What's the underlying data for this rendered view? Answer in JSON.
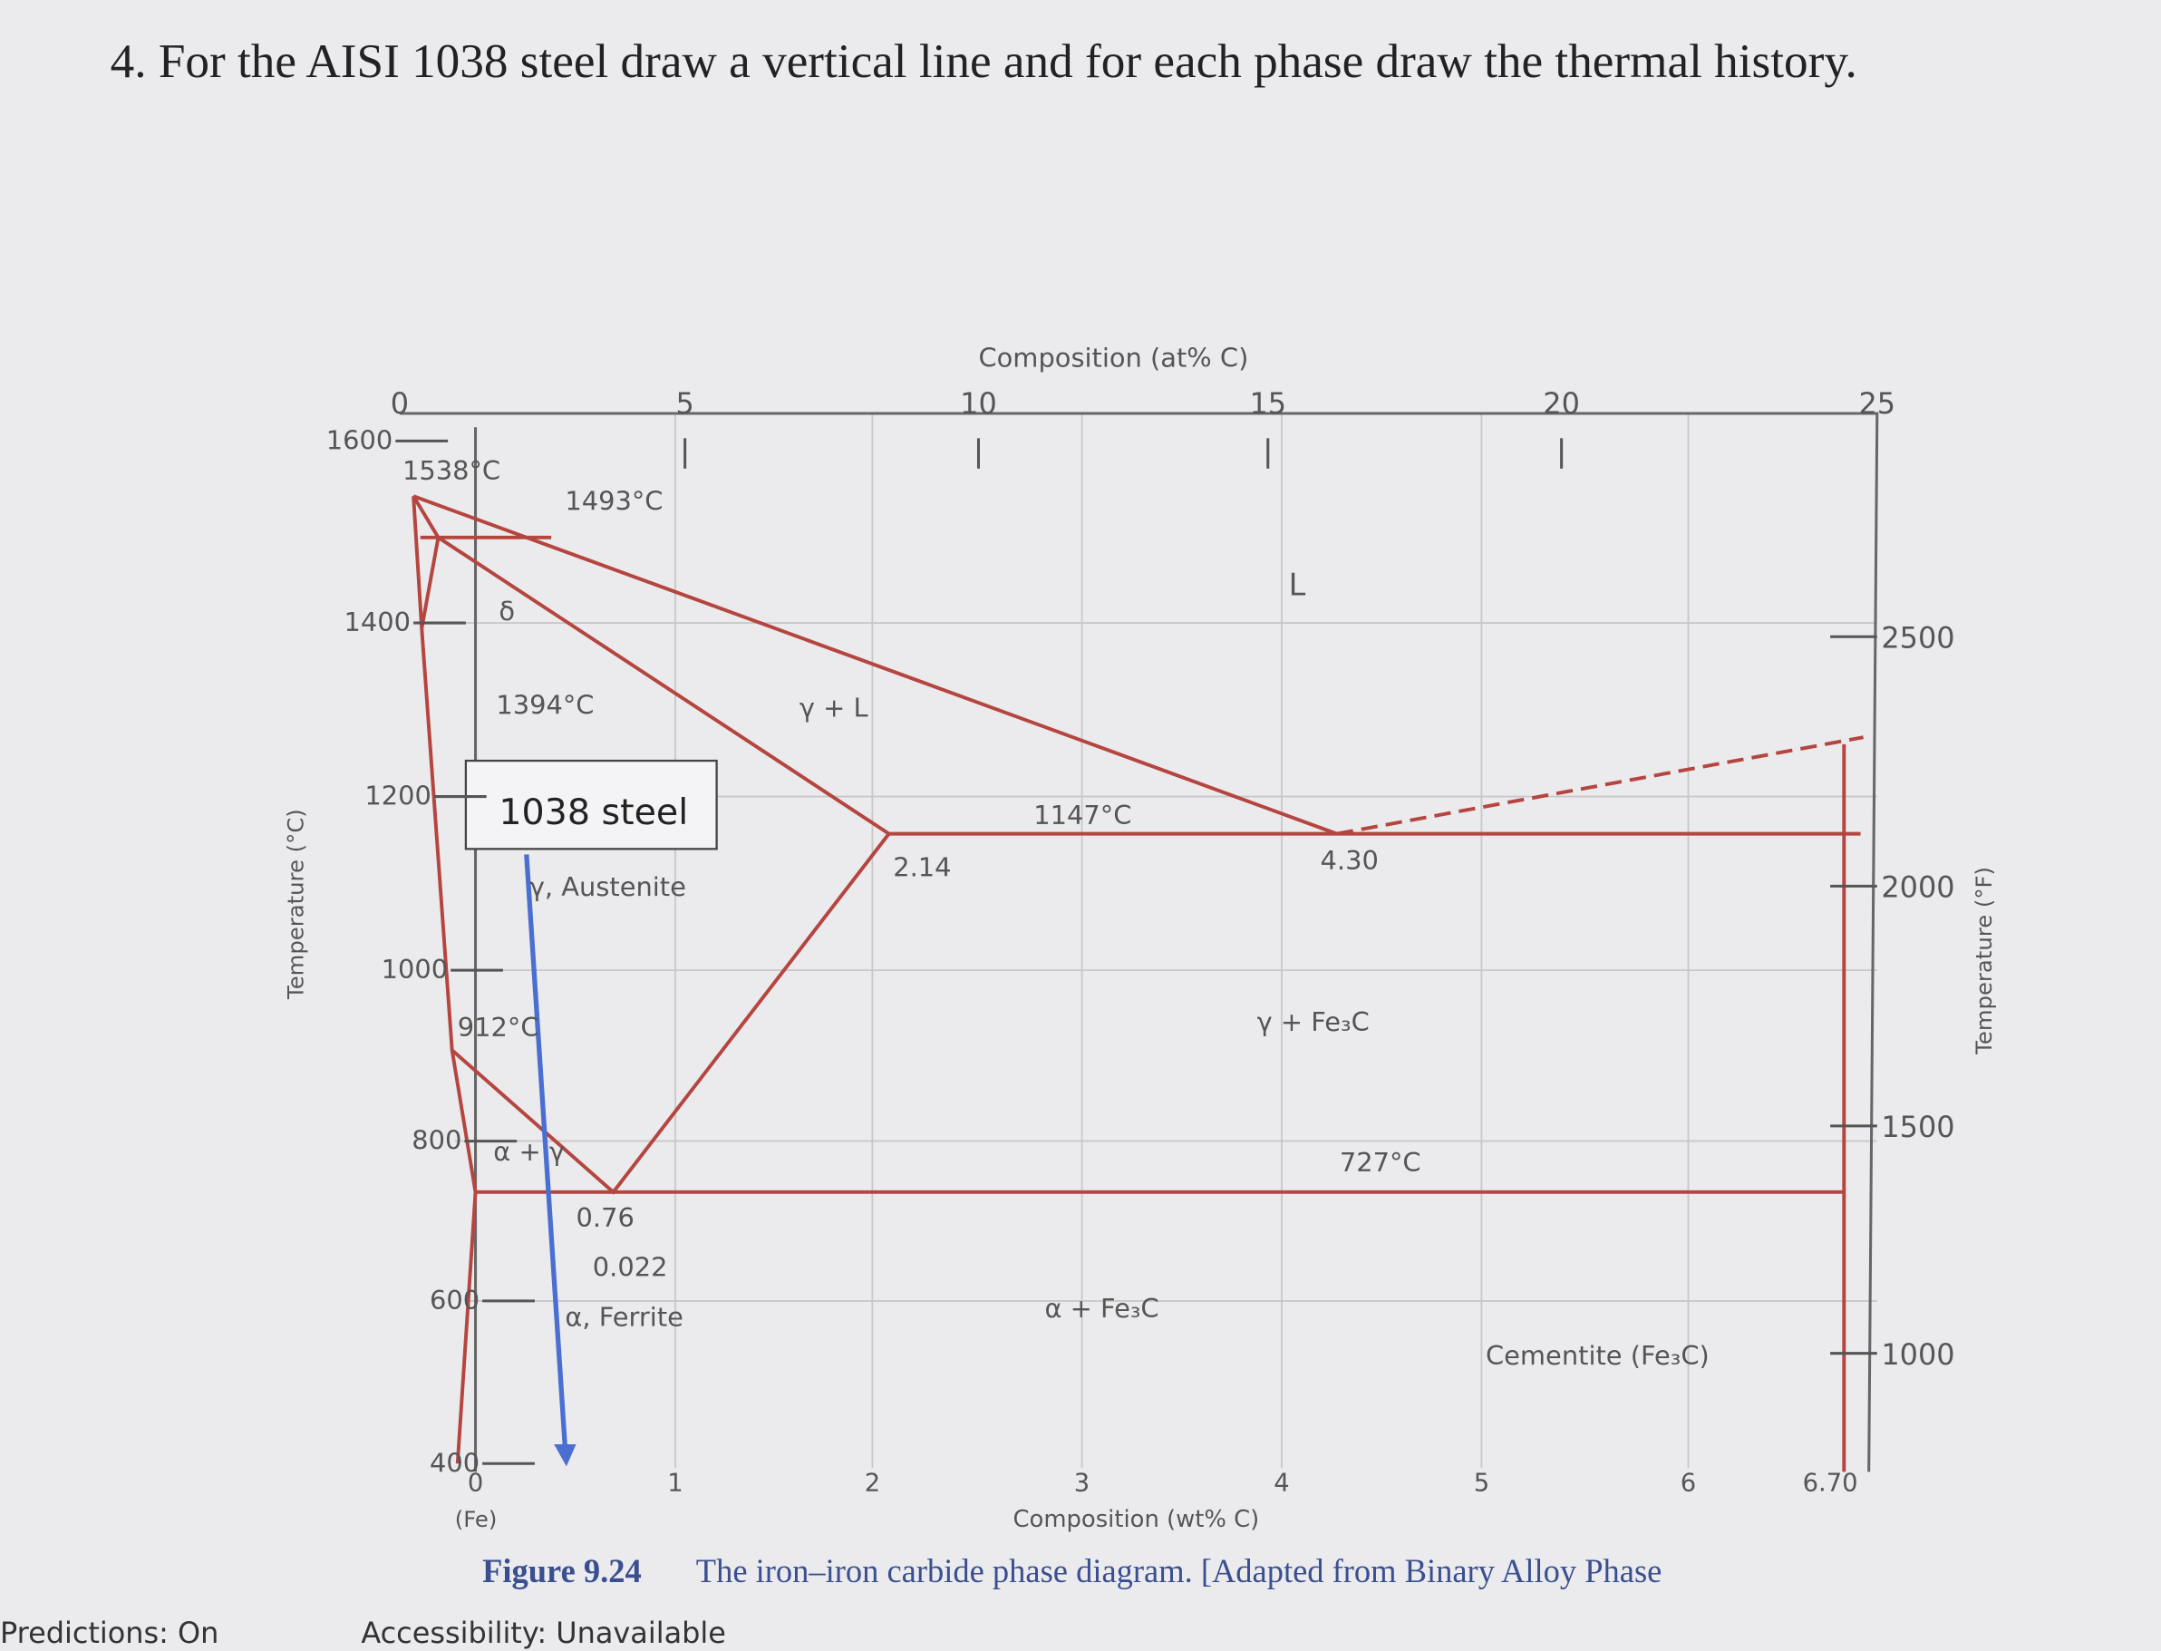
{
  "question": "4. For the AISI 1038 steel draw a vertical line and for each phase draw the thermal history.",
  "figure": {
    "top_axis_title": "Composition (at% C)",
    "top_ticks": [
      "0",
      "5",
      "10",
      "15",
      "20",
      "25"
    ],
    "left_axis_title": "Temperature (°C)",
    "left_ticks": [
      "1600",
      "1400",
      "1200",
      "1000",
      "800",
      "600",
      "400"
    ],
    "right_axis_title": "Temperature (°F)",
    "right_ticks": [
      "2500",
      "2000",
      "1500",
      "1000"
    ],
    "bottom_axis_title": "Composition (wt% C)",
    "bottom_ticks": [
      "0",
      "1",
      "2",
      "3",
      "4",
      "5",
      "6",
      "6.70"
    ],
    "fe_label": "(Fe)",
    "annotation": "1038 steel",
    "labels": [
      "1538°C",
      "1493°C",
      "δ",
      "1394°C",
      "γ + L",
      "L",
      "1147°C",
      "2.14",
      "4.30",
      "γ, Austenite",
      "912°C",
      "γ + Fe₃C",
      "727°C",
      "0.76",
      "0.022",
      "α, Ferrite",
      "α + Fe₃C",
      "Cementite (Fe₃C)",
      "α + γ"
    ],
    "caption_label": "Figure 9.24",
    "caption": "The iron–iron carbide phase diagram. [Adapted from Binary Alloy Phase"
  },
  "status_bar": {
    "predictions": "Predictions: On",
    "accessibility": "Accessibility: Unavailable"
  }
}
